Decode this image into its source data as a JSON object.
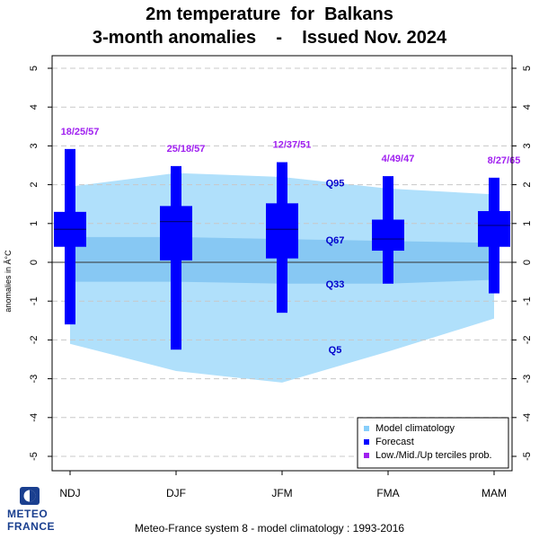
{
  "chart_data": {
    "type": "box",
    "title_line1": "2m temperature  for  Balkans",
    "title_line2": "3-month anomalies    -    Issued Nov. 2024",
    "ylabel": "anomalies in Â°C",
    "ylim": [
      -5.4,
      5.4
    ],
    "yticks": [
      "5",
      "4",
      "3",
      "2",
      "1",
      "0",
      "-1",
      "-2",
      "-3",
      "-4",
      "-5"
    ],
    "grid": true,
    "categories": [
      "NDJ",
      "DJF",
      "JFM",
      "FMA",
      "MAM"
    ],
    "climatology": {
      "q5": [
        -2.1,
        -2.8,
        -3.1,
        -2.3,
        -1.45
      ],
      "q33": [
        -0.5,
        -0.5,
        -0.55,
        -0.55,
        -0.45
      ],
      "q67": [
        0.65,
        0.65,
        0.6,
        0.55,
        0.5
      ],
      "q95": [
        1.95,
        2.3,
        2.2,
        1.9,
        1.75
      ],
      "labels": {
        "q95": "Q95",
        "q67": "Q67",
        "q33": "Q33",
        "q5": "Q5"
      }
    },
    "forecast": [
      {
        "min": -1.6,
        "q25": 0.4,
        "median": 0.85,
        "q75": 1.3,
        "max": 2.92
      },
      {
        "min": -2.25,
        "q25": 0.05,
        "median": 1.05,
        "q75": 1.45,
        "max": 2.48
      },
      {
        "min": -1.3,
        "q25": 0.1,
        "median": 0.85,
        "q75": 1.52,
        "max": 2.58
      },
      {
        "min": -0.55,
        "q25": 0.3,
        "median": 0.6,
        "q75": 1.1,
        "max": 2.22
      },
      {
        "min": -0.8,
        "q25": 0.4,
        "median": 0.95,
        "q75": 1.32,
        "max": 2.18
      }
    ],
    "tercile_probs": [
      "18/25/57",
      "25/18/57",
      "12/37/51",
      "4/49/47",
      "8/27/65"
    ],
    "legend": {
      "position": "bottom-right",
      "entries": [
        {
          "label": "Model climatology",
          "color": "#87cefa"
        },
        {
          "label": "Forecast",
          "color": "#0000ff"
        },
        {
          "label": "Low./Mid./Up terciles prob.",
          "color": "#a020f0"
        }
      ]
    },
    "colors": {
      "outer_band": "#b0e0fb",
      "inner_band": "#87c8f3",
      "forecast": "#0000ff",
      "probs": "#a020f0",
      "quantile_labels": "#0000cd"
    }
  },
  "footer": "Meteo-France system 8  -  model climatology : 1993-2016",
  "logo": {
    "line1": "METEO",
    "line2": "FRANCE"
  }
}
